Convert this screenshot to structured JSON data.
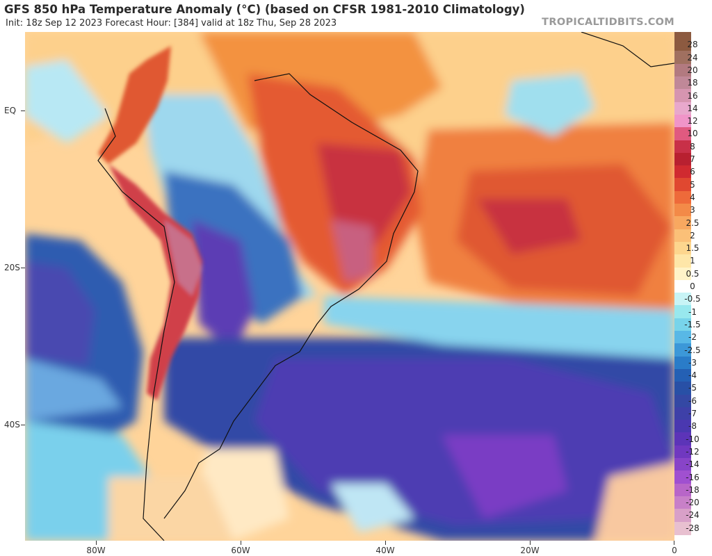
{
  "header": {
    "title": "GFS 850 hPa Temperature Anomaly (°C) (based on CFSR 1981-2010 Climatology)",
    "subtitle": "Init: 18z Sep 12 2023   Forecast Hour: [384]   valid at 18z Thu, Sep 28 2023",
    "source": "TROPICALTIDBITS.COM"
  },
  "map": {
    "lat_labels": [
      "EQ",
      "20S",
      "40S"
    ],
    "lon_labels": [
      "80W",
      "60W",
      "40W",
      "20W",
      "0"
    ]
  },
  "colorbar": {
    "labels": [
      "28",
      "24",
      "20",
      "18",
      "16",
      "14",
      "12",
      "10",
      "8",
      "7",
      "6",
      "5",
      "4",
      "3",
      "2.5",
      "2",
      "1.5",
      "1",
      "0.5",
      "0",
      "-0.5",
      "-1",
      "-1.5",
      "-2",
      "-2.5",
      "-3",
      "-4",
      "-5",
      "-6",
      "-7",
      "-8",
      "-10",
      "-12",
      "-14",
      "-16",
      "-18",
      "-20",
      "-24",
      "-28"
    ],
    "colors": [
      "#8c5a40",
      "#a07060",
      "#b27a80",
      "#c08898",
      "#d695b0",
      "#e8a8cc",
      "#f095c8",
      "#e05a80",
      "#c83048",
      "#b82030",
      "#d02a30",
      "#e04830",
      "#ee6a3a",
      "#f38a48",
      "#f8a860",
      "#fbc078",
      "#fdd68e",
      "#fee6a8",
      "#fff3c8",
      "#ffffff",
      "#c8f4f6",
      "#98e8ee",
      "#78d4ea",
      "#58b8e6",
      "#3c98d8",
      "#2a7cc8",
      "#2460b4",
      "#2850a6",
      "#3448a4",
      "#3e40a8",
      "#4a38b0",
      "#5c34b8",
      "#7038c0",
      "#8844c8",
      "#a050d0",
      "#b866c8",
      "#c880c8",
      "#d8a0c8",
      "#e8c0d0"
    ]
  }
}
